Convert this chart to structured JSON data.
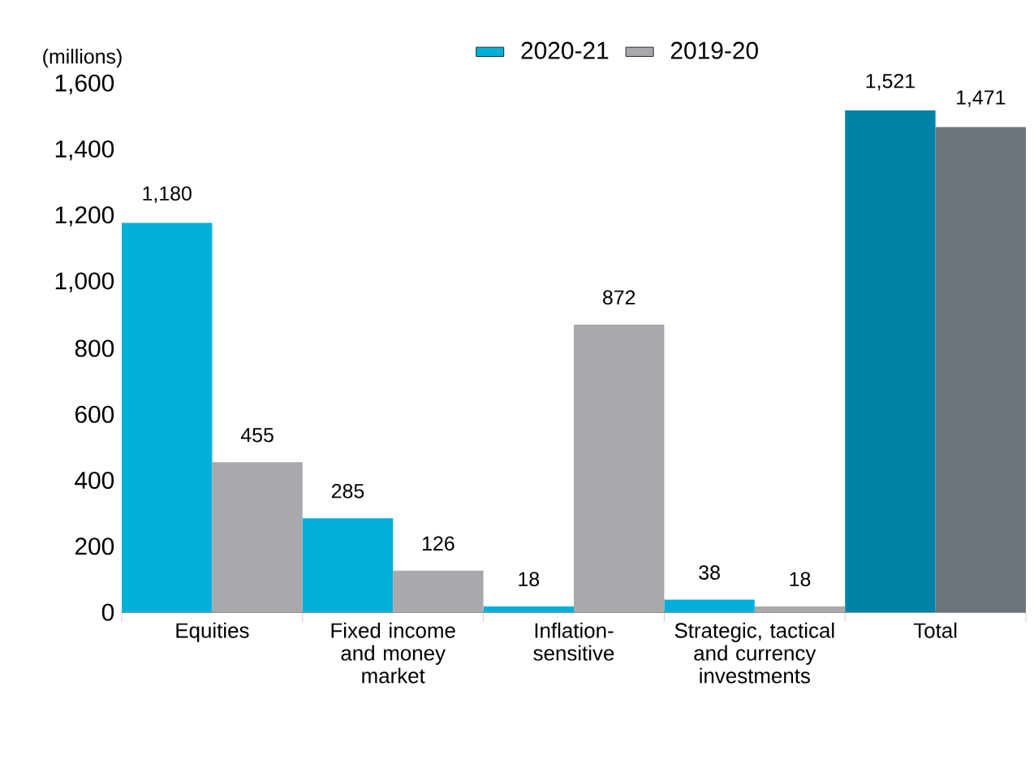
{
  "chart_data": {
    "type": "bar",
    "ylabel": "(millions)",
    "categories": [
      "Equities",
      "Fixed income and money market",
      "Inflation-sensitive",
      "Strategic, tactical and currency investments",
      "Total"
    ],
    "series": [
      {
        "name": "2020-21",
        "color": "#00b0d8",
        "colors": [
          "#00b0d8",
          "#00b0d8",
          "#00b0d8",
          "#00b0d8",
          "#0082a8"
        ],
        "values": [
          1180,
          285,
          18,
          38,
          1521
        ],
        "value_labels": [
          "1,180",
          "285",
          "18",
          "38",
          "1,521"
        ]
      },
      {
        "name": "2019-20",
        "color": "#a7a9ac",
        "colors": [
          "#a7a9ac",
          "#a7a9ac",
          "#a7a9ac",
          "#a7a9ac",
          "#6d747c"
        ],
        "values": [
          455,
          126,
          872,
          18,
          1471
        ],
        "value_labels": [
          "455",
          "126",
          "872",
          "18",
          "1,471"
        ]
      }
    ],
    "ylim": [
      0,
      1600
    ],
    "yticks": [
      0,
      200,
      400,
      600,
      800,
      {
        "value": 1000,
        "label": "1,000"
      },
      {
        "value": 1200,
        "label": "1,200"
      },
      {
        "value": 1400,
        "label": "1,400"
      },
      {
        "value": 1600,
        "label": "1,600"
      }
    ],
    "grid": false,
    "legend": "top"
  }
}
